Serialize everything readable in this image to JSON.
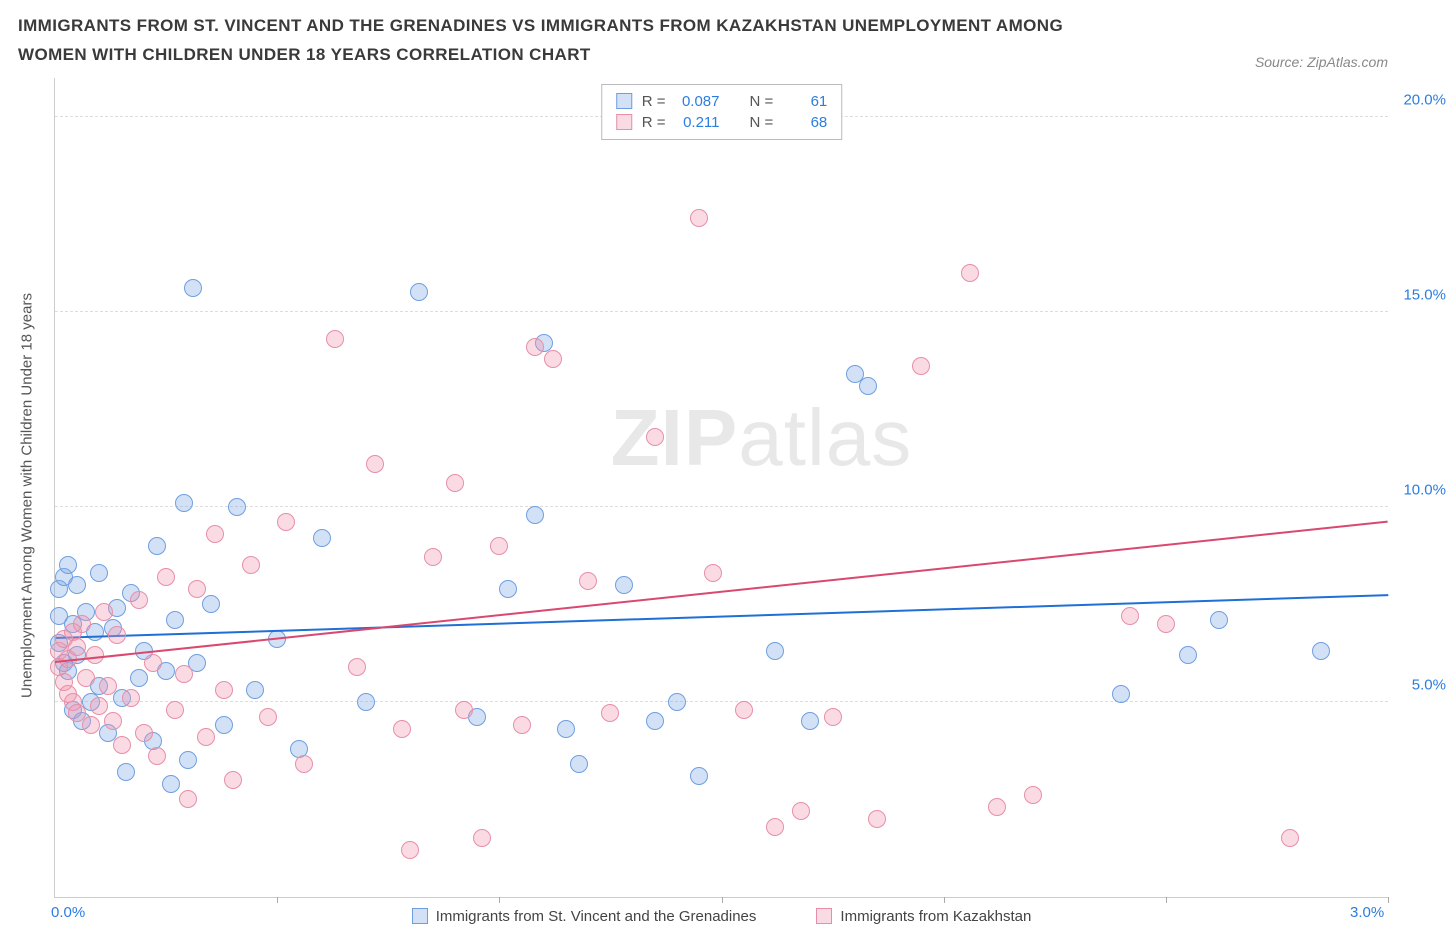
{
  "header": {
    "title": "IMMIGRANTS FROM ST. VINCENT AND THE GRENADINES VS IMMIGRANTS FROM KAZAKHSTAN UNEMPLOYMENT AMONG WOMEN WITH CHILDREN UNDER 18 YEARS CORRELATION CHART",
    "source_prefix": "Source: ",
    "source_name": "ZipAtlas.com"
  },
  "chart": {
    "type": "scatter",
    "y_axis_label": "Unemployment Among Women with Children Under 18 years",
    "xlim": [
      0.0,
      3.0
    ],
    "ylim": [
      0.0,
      21.0
    ],
    "x_ticks_minor": [
      0.5,
      1.0,
      1.5,
      2.0,
      2.5,
      3.0
    ],
    "x_ticks_labeled": [
      {
        "val": 0.0,
        "label": "0.0%"
      },
      {
        "val": 3.0,
        "label": "3.0%"
      }
    ],
    "y_ticks": [
      {
        "val": 5.0,
        "label": "5.0%"
      },
      {
        "val": 10.0,
        "label": "10.0%"
      },
      {
        "val": 15.0,
        "label": "15.0%"
      },
      {
        "val": 20.0,
        "label": "20.0%"
      }
    ],
    "grid_color": "#dddddd",
    "background_color": "#ffffff",
    "axis_color": "#cccccc",
    "tick_label_color": "#2b7de1",
    "watermark": {
      "zip": "ZIP",
      "atlas": "atlas"
    },
    "series": [
      {
        "id": "svg",
        "name": "Immigrants from St. Vincent and the Grenadines",
        "fill": "rgba(130,170,230,0.35)",
        "stroke": "#6f9fe0",
        "trend_color": "#1f6fd4",
        "R": "0.087",
        "N": "61",
        "trend": {
          "x1": 0.0,
          "y1": 6.6,
          "x2": 3.0,
          "y2": 7.7
        },
        "points": [
          [
            0.01,
            7.9
          ],
          [
            0.01,
            7.2
          ],
          [
            0.01,
            6.5
          ],
          [
            0.02,
            8.2
          ],
          [
            0.02,
            6.0
          ],
          [
            0.03,
            8.5
          ],
          [
            0.03,
            5.8
          ],
          [
            0.04,
            7.0
          ],
          [
            0.04,
            4.8
          ],
          [
            0.05,
            8.0
          ],
          [
            0.05,
            6.2
          ],
          [
            0.06,
            4.5
          ],
          [
            0.07,
            7.3
          ],
          [
            0.08,
            5.0
          ],
          [
            0.09,
            6.8
          ],
          [
            0.1,
            5.4
          ],
          [
            0.1,
            8.3
          ],
          [
            0.12,
            4.2
          ],
          [
            0.13,
            6.9
          ],
          [
            0.14,
            7.4
          ],
          [
            0.15,
            5.1
          ],
          [
            0.16,
            3.2
          ],
          [
            0.17,
            7.8
          ],
          [
            0.19,
            5.6
          ],
          [
            0.2,
            6.3
          ],
          [
            0.22,
            4.0
          ],
          [
            0.23,
            9.0
          ],
          [
            0.25,
            5.8
          ],
          [
            0.26,
            2.9
          ],
          [
            0.27,
            7.1
          ],
          [
            0.29,
            10.1
          ],
          [
            0.3,
            3.5
          ],
          [
            0.31,
            15.6
          ],
          [
            0.32,
            6.0
          ],
          [
            0.35,
            7.5
          ],
          [
            0.38,
            4.4
          ],
          [
            0.41,
            10.0
          ],
          [
            0.45,
            5.3
          ],
          [
            0.5,
            6.6
          ],
          [
            0.55,
            3.8
          ],
          [
            0.6,
            9.2
          ],
          [
            0.7,
            5.0
          ],
          [
            0.82,
            15.5
          ],
          [
            0.95,
            4.6
          ],
          [
            1.02,
            7.9
          ],
          [
            1.08,
            9.8
          ],
          [
            1.1,
            14.2
          ],
          [
            1.15,
            4.3
          ],
          [
            1.18,
            3.4
          ],
          [
            1.28,
            8.0
          ],
          [
            1.35,
            4.5
          ],
          [
            1.4,
            5.0
          ],
          [
            1.45,
            3.1
          ],
          [
            1.62,
            6.3
          ],
          [
            1.7,
            4.5
          ],
          [
            1.8,
            13.4
          ],
          [
            1.83,
            13.1
          ],
          [
            2.4,
            5.2
          ],
          [
            2.55,
            6.2
          ],
          [
            2.62,
            7.1
          ],
          [
            2.85,
            6.3
          ]
        ]
      },
      {
        "id": "kaz",
        "name": "Immigrants from Kazakhstan",
        "fill": "rgba(240,150,175,0.35)",
        "stroke": "#e78fa8",
        "trend_color": "#d9486f",
        "R": "0.211",
        "N": "68",
        "trend": {
          "x1": 0.0,
          "y1": 6.0,
          "x2": 3.0,
          "y2": 9.6
        },
        "points": [
          [
            0.01,
            6.3
          ],
          [
            0.01,
            5.9
          ],
          [
            0.02,
            6.6
          ],
          [
            0.02,
            5.5
          ],
          [
            0.03,
            6.1
          ],
          [
            0.03,
            5.2
          ],
          [
            0.04,
            6.8
          ],
          [
            0.04,
            5.0
          ],
          [
            0.05,
            6.4
          ],
          [
            0.05,
            4.7
          ],
          [
            0.06,
            7.0
          ],
          [
            0.07,
            5.6
          ],
          [
            0.08,
            4.4
          ],
          [
            0.09,
            6.2
          ],
          [
            0.1,
            4.9
          ],
          [
            0.11,
            7.3
          ],
          [
            0.12,
            5.4
          ],
          [
            0.13,
            4.5
          ],
          [
            0.14,
            6.7
          ],
          [
            0.15,
            3.9
          ],
          [
            0.17,
            5.1
          ],
          [
            0.19,
            7.6
          ],
          [
            0.2,
            4.2
          ],
          [
            0.22,
            6.0
          ],
          [
            0.23,
            3.6
          ],
          [
            0.25,
            8.2
          ],
          [
            0.27,
            4.8
          ],
          [
            0.29,
            5.7
          ],
          [
            0.3,
            2.5
          ],
          [
            0.32,
            7.9
          ],
          [
            0.34,
            4.1
          ],
          [
            0.36,
            9.3
          ],
          [
            0.38,
            5.3
          ],
          [
            0.4,
            3.0
          ],
          [
            0.44,
            8.5
          ],
          [
            0.48,
            4.6
          ],
          [
            0.52,
            9.6
          ],
          [
            0.56,
            3.4
          ],
          [
            0.63,
            14.3
          ],
          [
            0.68,
            5.9
          ],
          [
            0.72,
            11.1
          ],
          [
            0.78,
            4.3
          ],
          [
            0.8,
            1.2
          ],
          [
            0.85,
            8.7
          ],
          [
            0.9,
            10.6
          ],
          [
            0.92,
            4.8
          ],
          [
            0.96,
            1.5
          ],
          [
            1.0,
            9.0
          ],
          [
            1.05,
            4.4
          ],
          [
            1.12,
            13.8
          ],
          [
            1.08,
            14.1
          ],
          [
            1.2,
            8.1
          ],
          [
            1.25,
            4.7
          ],
          [
            1.35,
            11.8
          ],
          [
            1.45,
            17.4
          ],
          [
            1.48,
            8.3
          ],
          [
            1.55,
            4.8
          ],
          [
            1.62,
            1.8
          ],
          [
            1.68,
            2.2
          ],
          [
            1.75,
            4.6
          ],
          [
            1.85,
            2.0
          ],
          [
            1.95,
            13.6
          ],
          [
            2.06,
            16.0
          ],
          [
            2.12,
            2.3
          ],
          [
            2.2,
            2.6
          ],
          [
            2.5,
            7.0
          ],
          [
            2.78,
            1.5
          ],
          [
            2.42,
            7.2
          ]
        ]
      }
    ],
    "bottom_legend": [
      {
        "series": 0
      },
      {
        "series": 1
      }
    ],
    "top_legend_labels": {
      "R": "R =",
      "N": "N ="
    }
  }
}
